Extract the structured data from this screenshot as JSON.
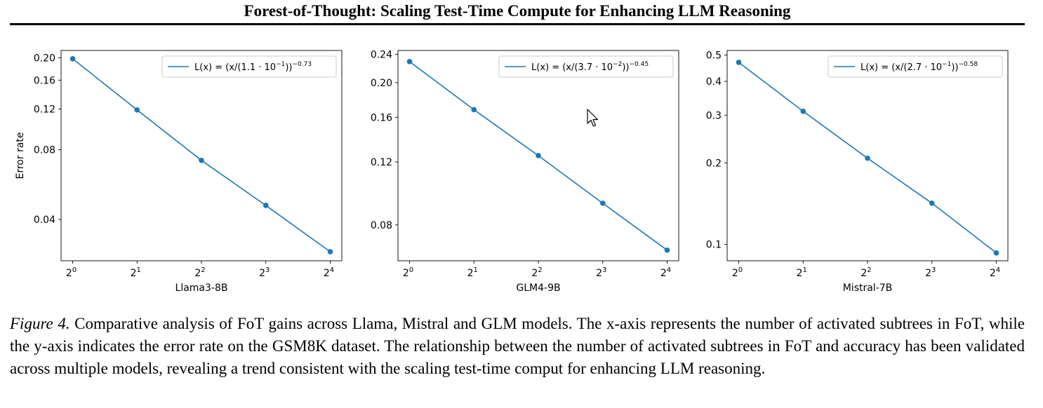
{
  "header": {
    "title": "Forest-of-Thought: Scaling Test-Time Compute for Enhancing LLM Reasoning"
  },
  "chart_data": [
    {
      "type": "line",
      "xlabel": "Llama3-8B",
      "ylabel": "Error rate",
      "x": [
        1,
        2,
        4,
        8,
        16
      ],
      "x_tick_labels": [
        "2",
        "2",
        "2",
        "2",
        "2"
      ],
      "x_tick_exponents": [
        "0",
        "1",
        "2",
        "3",
        "4"
      ],
      "values": [
        0.198,
        0.119,
        0.072,
        0.046,
        0.029
      ],
      "yscale": "log",
      "ylim": [
        0.0265,
        0.215
      ],
      "y_ticks": [
        0.04,
        0.08,
        0.12,
        0.16,
        0.2
      ],
      "y_tick_labels": [
        "0.04",
        "0.08",
        "0.12",
        "0.16",
        "0.20"
      ],
      "legend": {
        "prefix": "L(x) = (x/(1.1 · 10",
        "exp1": "−1",
        "mid": "))",
        "exp2": "−0.73"
      },
      "legend_position": "top-right",
      "color": "#1f77b4"
    },
    {
      "type": "line",
      "xlabel": "GLM4-9B",
      "ylabel": "",
      "x": [
        1,
        2,
        4,
        8,
        16
      ],
      "x_tick_labels": [
        "2",
        "2",
        "2",
        "2",
        "2"
      ],
      "x_tick_exponents": [
        "0",
        "1",
        "2",
        "3",
        "4"
      ],
      "values": [
        0.229,
        0.168,
        0.125,
        0.092,
        0.068
      ],
      "yscale": "log",
      "ylim": [
        0.0635,
        0.246
      ],
      "y_ticks": [
        0.08,
        0.12,
        0.16,
        0.2,
        0.24
      ],
      "y_tick_labels": [
        "0.08",
        "0.12",
        "0.16",
        "0.20",
        "0.24"
      ],
      "legend": {
        "prefix": "L(x) = (x/(3.7 · 10",
        "exp1": "−2",
        "mid": "))",
        "exp2": "−0.45"
      },
      "legend_position": "top-right",
      "color": "#1f77b4"
    },
    {
      "type": "line",
      "xlabel": "Mistral-7B",
      "ylabel": "",
      "x": [
        1,
        2,
        4,
        8,
        16
      ],
      "x_tick_labels": [
        "2",
        "2",
        "2",
        "2",
        "2"
      ],
      "x_tick_exponents": [
        "0",
        "1",
        "2",
        "3",
        "4"
      ],
      "values": [
        0.47,
        0.31,
        0.208,
        0.142,
        0.093
      ],
      "yscale": "log",
      "ylim": [
        0.087,
        0.52
      ],
      "y_ticks": [
        0.1,
        0.2,
        0.3,
        0.4,
        0.5
      ],
      "y_tick_labels": [
        "0.1",
        "0.2",
        "0.3",
        "0.4",
        "0.5"
      ],
      "legend": {
        "prefix": "L(x) = (x/(2.7 · 10",
        "exp1": "−1",
        "mid": "))",
        "exp2": "−0.58"
      },
      "legend_position": "top-right",
      "color": "#1f77b4"
    }
  ],
  "caption": {
    "label": "Figure 4.",
    "text": " Comparative analysis of FoT gains across Llama, Mistral and GLM models.  The x-axis represents the number of activated subtrees in FoT, while the y-axis indicates the error rate on the GSM8K dataset.  The relationship between the number of activated subtrees in FoT and accuracy has been validated across multiple models, revealing a trend consistent with the scaling test-time comput for enhancing LLM reasoning."
  }
}
